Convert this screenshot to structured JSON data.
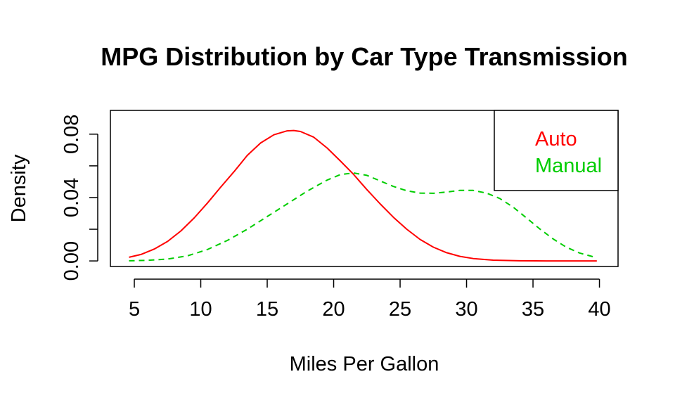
{
  "chart_data": {
    "type": "line",
    "title": "MPG Distribution by Car Type Transmission",
    "xlabel": "Miles Per Gallon",
    "ylabel": "Density",
    "xlim": [
      3.2,
      41.4
    ],
    "ylim": [
      -0.0035,
      0.095
    ],
    "xticks": [
      5,
      10,
      15,
      20,
      25,
      30,
      35,
      40
    ],
    "yticks": [
      0.0,
      0.02,
      0.04,
      0.06,
      0.08
    ],
    "ytick_labels": [
      "0.00",
      "",
      "0.04",
      "",
      "0.08"
    ],
    "grid": false,
    "legend_position": "top-right",
    "series": [
      {
        "name": "Auto",
        "color": "#ff0000",
        "linestyle": "solid",
        "x": [
          4.6,
          5.5,
          6.5,
          7.5,
          8.5,
          9.5,
          10.5,
          11.5,
          12.5,
          13.5,
          14.5,
          15.5,
          16.5,
          17.0,
          17.5,
          18.5,
          19.5,
          20.5,
          21.5,
          22.5,
          23.5,
          24.5,
          25.5,
          26.5,
          27.5,
          28.5,
          29.5,
          30.5,
          32.0,
          34.0,
          36.0,
          38.0,
          39.8
        ],
        "y": [
          0.0023,
          0.0041,
          0.0075,
          0.0123,
          0.0189,
          0.0271,
          0.0365,
          0.0466,
          0.0563,
          0.0666,
          0.0744,
          0.0796,
          0.0821,
          0.0823,
          0.0817,
          0.0781,
          0.0713,
          0.0631,
          0.0546,
          0.045,
          0.036,
          0.0275,
          0.02,
          0.0136,
          0.0087,
          0.0052,
          0.0029,
          0.0015,
          0.0005,
          0.0001,
          0.0,
          0.0,
          0.0
        ]
      },
      {
        "name": "Manual",
        "color": "#00cd00",
        "linestyle": "dashed",
        "x": [
          4.6,
          6.0,
          7.5,
          9.0,
          10.5,
          12.0,
          13.5,
          15.0,
          16.5,
          18.0,
          19.5,
          20.5,
          21.5,
          22.5,
          23.5,
          24.5,
          25.5,
          26.5,
          27.5,
          28.5,
          29.5,
          30.5,
          31.5,
          32.5,
          33.5,
          34.5,
          35.5,
          36.5,
          37.5,
          38.5,
          39.8
        ],
        "y": [
          0.0001,
          0.0004,
          0.0012,
          0.0032,
          0.0072,
          0.0129,
          0.02,
          0.028,
          0.036,
          0.044,
          0.051,
          0.0545,
          0.0555,
          0.054,
          0.0505,
          0.047,
          0.0443,
          0.0428,
          0.0427,
          0.0435,
          0.0445,
          0.0445,
          0.0428,
          0.0394,
          0.034,
          0.0272,
          0.0203,
          0.014,
          0.0087,
          0.005,
          0.002
        ]
      }
    ]
  }
}
